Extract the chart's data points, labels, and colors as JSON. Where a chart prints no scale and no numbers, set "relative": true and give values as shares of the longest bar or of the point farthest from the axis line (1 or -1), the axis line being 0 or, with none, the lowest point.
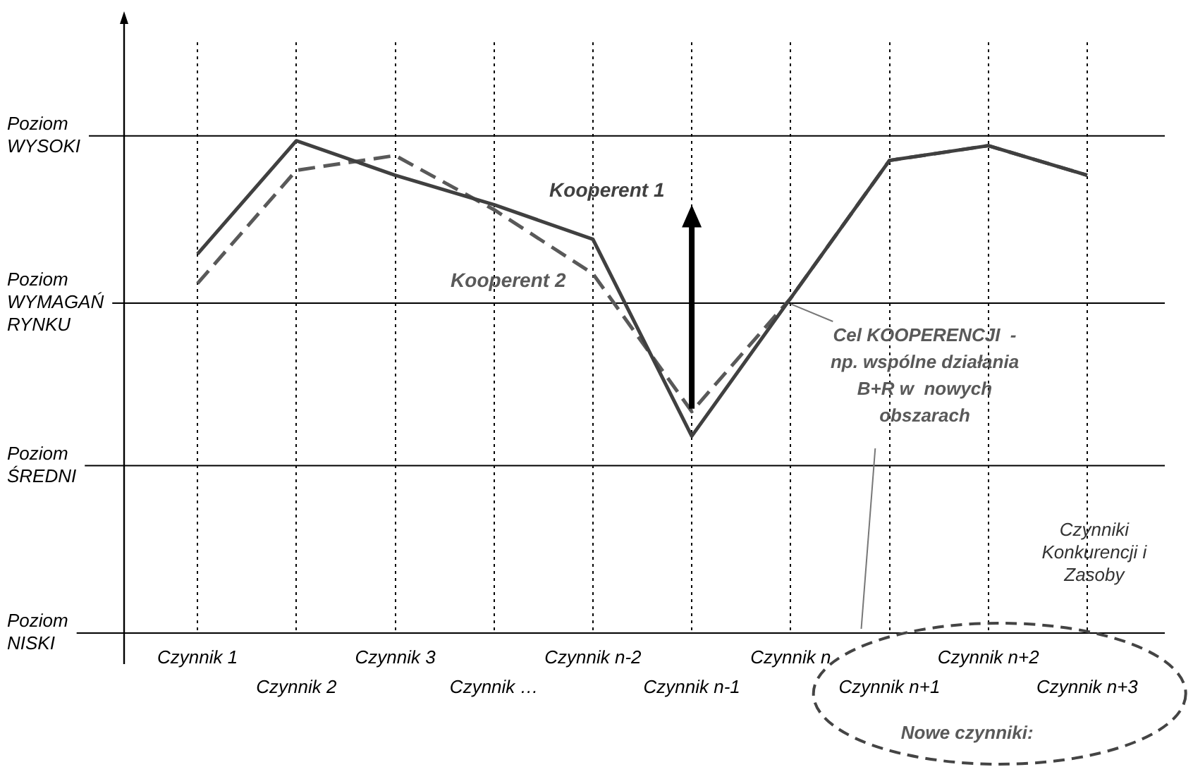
{
  "chart_data": {
    "type": "line",
    "relative": true,
    "categories": [
      "Czynnik 1",
      "Czynnik 2",
      "Czynnik 3",
      "Czynnik …",
      "Czynnik n-2",
      "Czynnik n-1",
      "Czynnik n",
      "Czynnik n+1",
      "Czynnik n+2",
      "Czynnik n+3"
    ],
    "series": [
      {
        "name": "Kooperent 1",
        "color": "#404040",
        "line_style": "solid",
        "values": [
          0.77,
          1,
          0.93,
          0.87,
          0.8,
          0.4,
          0.68,
          0.96,
          0.99,
          0.93
        ]
      },
      {
        "name": "Kooperent 2",
        "color": "#595959",
        "line_style": "dashed",
        "values": [
          0.71,
          0.94,
          0.97,
          0.86,
          0.73,
          0.45,
          0.68,
          0.96,
          0.99,
          0.93
        ]
      }
    ],
    "ref_lines": [
      {
        "axis": "y",
        "value": 0,
        "label": "Poziom NISKI"
      },
      {
        "axis": "y",
        "value": 0.34,
        "label": "Poziom ŚREDNI"
      },
      {
        "axis": "y",
        "value": 0.67,
        "label": "Poziom WYMAGAŃ RYNKU"
      },
      {
        "axis": "y",
        "value": 1.01,
        "label": "Poziom WYSOKI"
      }
    ],
    "xlabel": "Czynniki Konkurencji i Zasoby",
    "annotations": [
      {
        "text": "Cel KOOPERENCJI  - np. wspólne działania B+R w  nowych obszarach",
        "x": "Czynnik n",
        "y": 0.68
      },
      "Nowe czynniki:"
    ],
    "grid": "x",
    "marker": "none"
  }
}
